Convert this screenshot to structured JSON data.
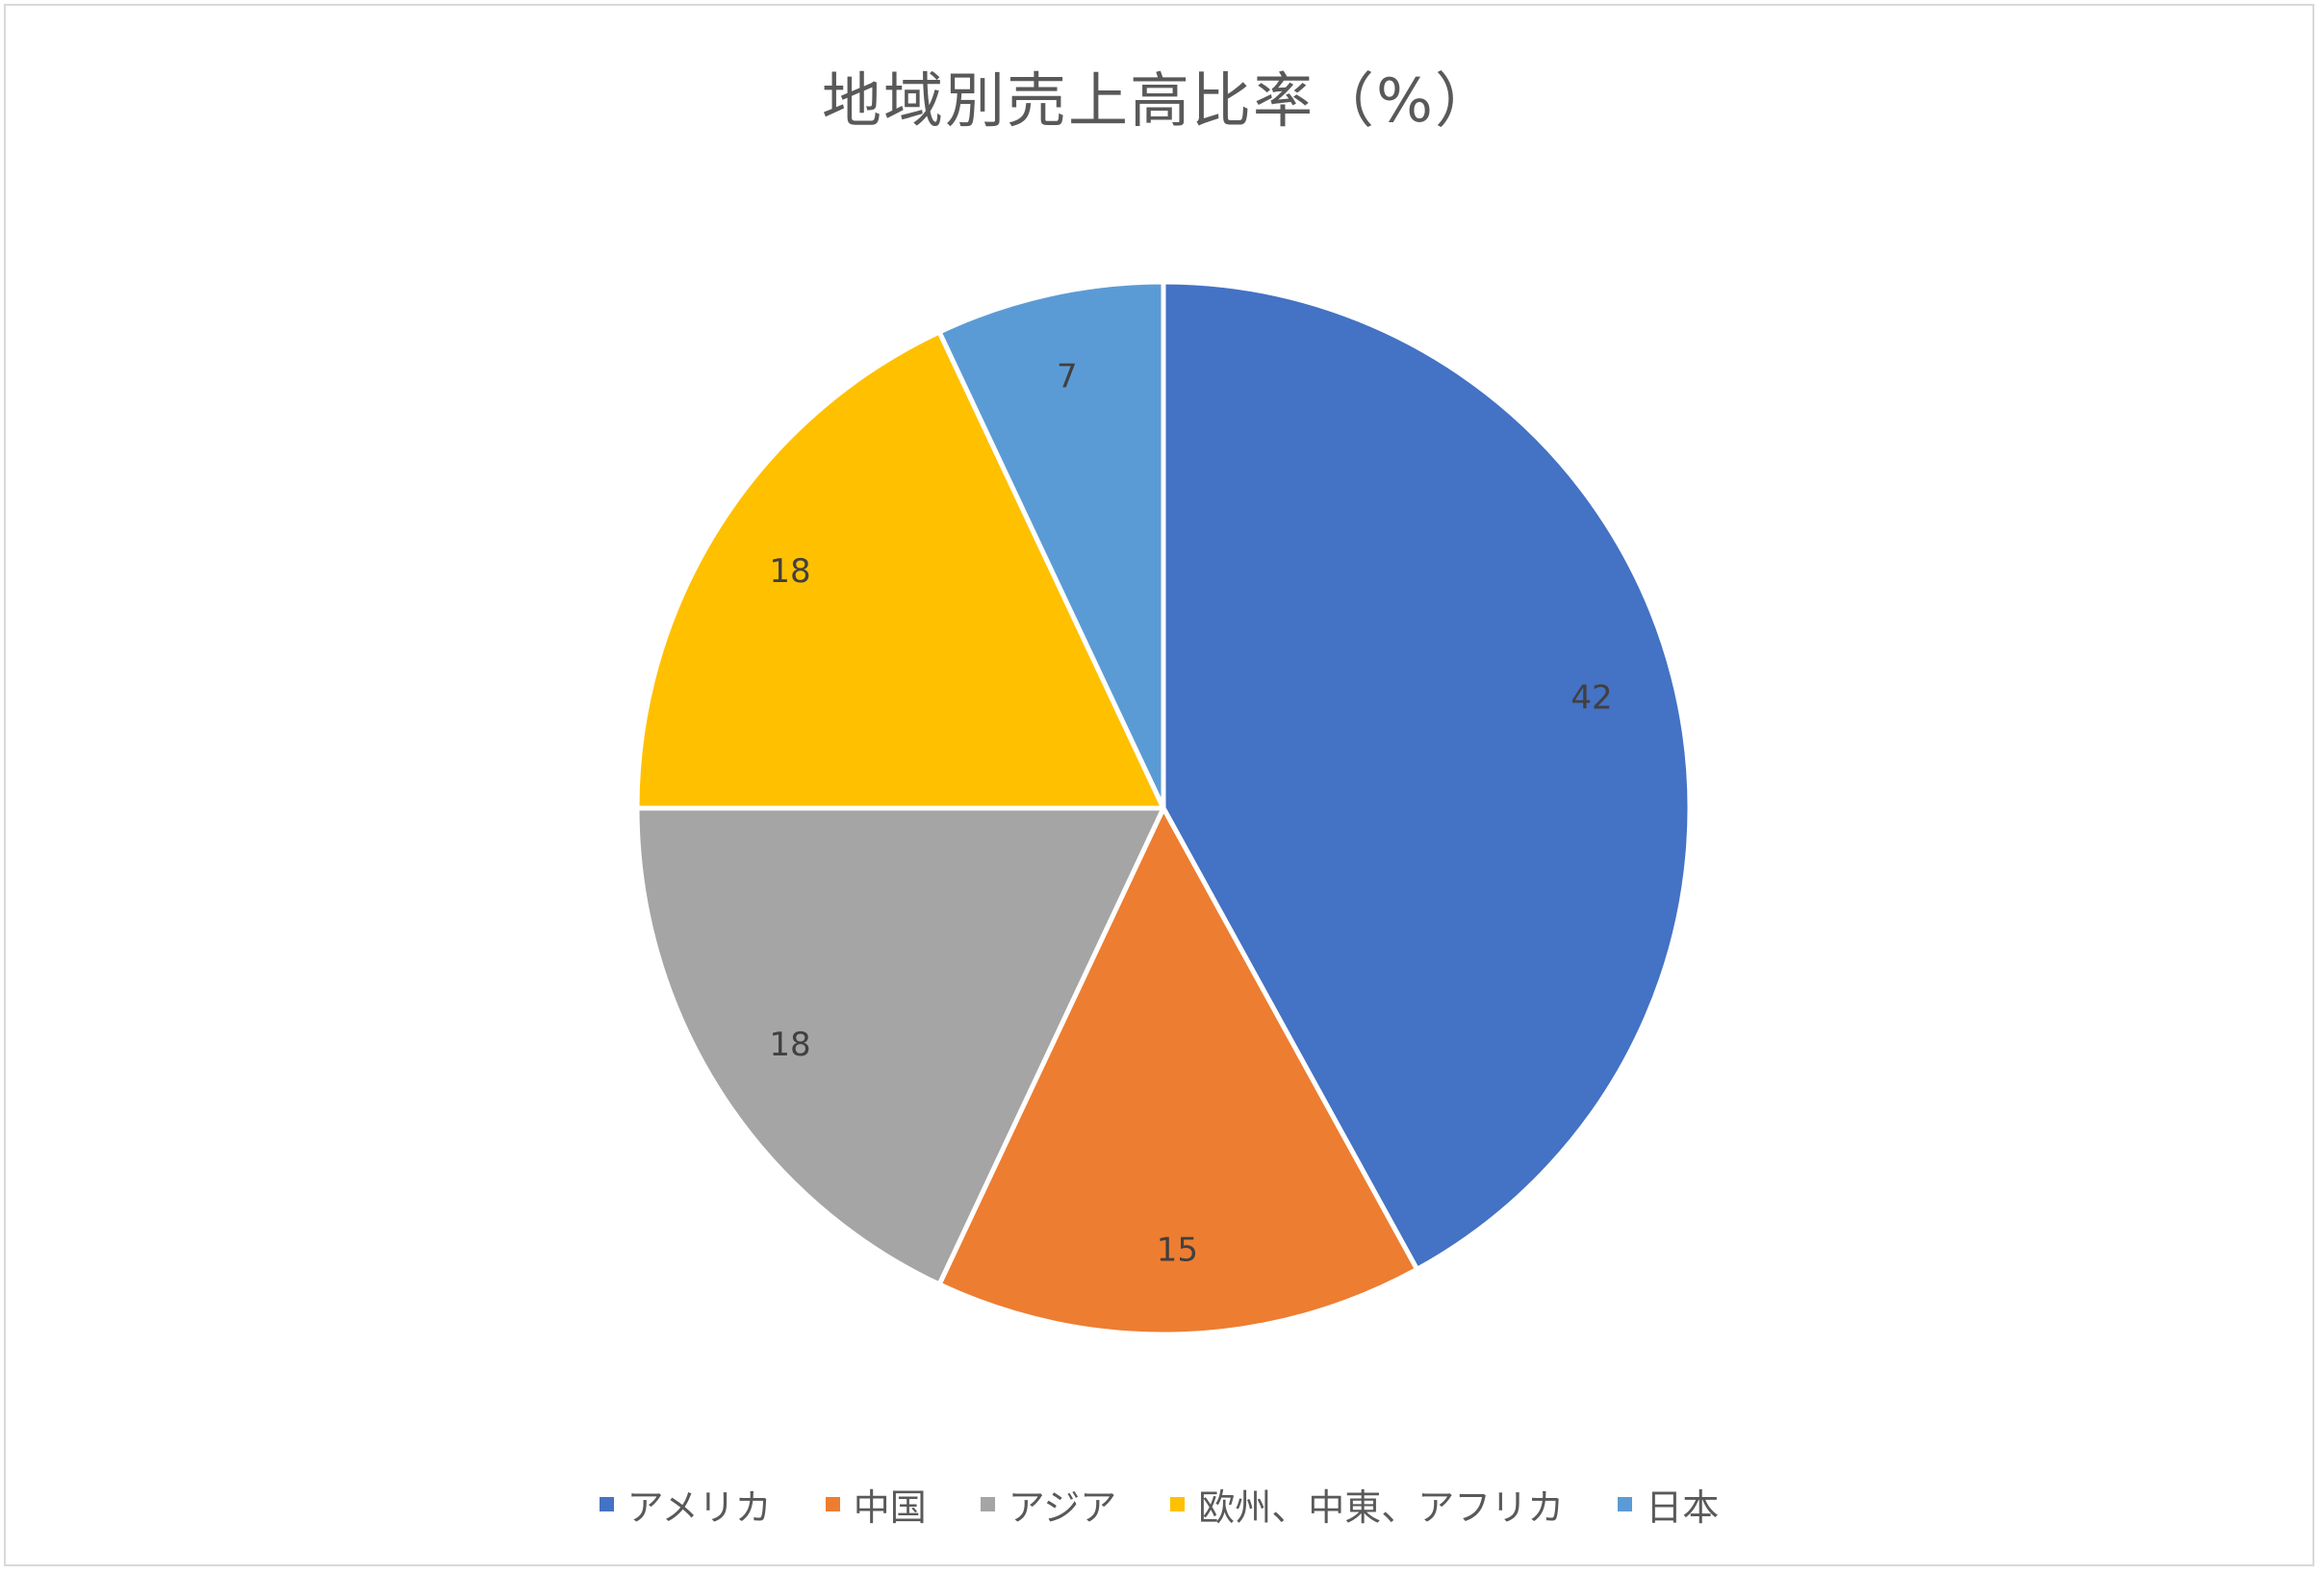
{
  "chart_data": {
    "type": "pie",
    "title": "地域別売上高比率（%）",
    "categories": [
      "アメリカ",
      "中国",
      "アジア",
      "欧州、中東、アフリカ",
      "日本"
    ],
    "values": [
      42,
      15,
      18,
      18,
      7
    ],
    "colors": [
      "#4472C4",
      "#ED7D31",
      "#A5A5A5",
      "#FFC000",
      "#5B9BD5"
    ],
    "data_labels": [
      "42",
      "15",
      "18",
      "18",
      "7"
    ],
    "start_angle_deg": 0,
    "direction": "clockwise",
    "legend_position": "bottom",
    "slice_border_color": "#FFFFFF"
  }
}
